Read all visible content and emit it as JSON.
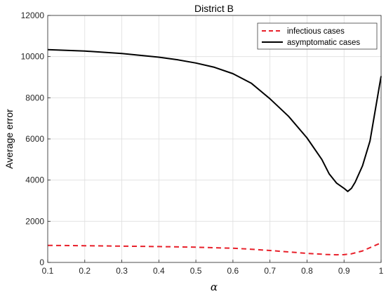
{
  "chart_data": {
    "type": "line",
    "title": "District B",
    "xlabel": "α",
    "ylabel": "Average error",
    "xlim": [
      0.1,
      1.0
    ],
    "ylim": [
      0,
      12000
    ],
    "xticks": [
      "0.1",
      "0.2",
      "0.3",
      "0.4",
      "0.5",
      "0.6",
      "0.7",
      "0.8",
      "0.9",
      "1"
    ],
    "yticks": [
      "0",
      "2000",
      "4000",
      "6000",
      "8000",
      "10000",
      "12000"
    ],
    "grid": true,
    "legend_position": "top-right",
    "series": [
      {
        "name": "infectious cases",
        "color": "#e8202a",
        "style": "dashed",
        "x": [
          0.1,
          0.2,
          0.3,
          0.4,
          0.5,
          0.6,
          0.65,
          0.7,
          0.75,
          0.8,
          0.85,
          0.88,
          0.9,
          0.92,
          0.95,
          1.0
        ],
        "y": [
          830,
          810,
          790,
          770,
          740,
          690,
          640,
          580,
          510,
          440,
          390,
          370,
          380,
          420,
          560,
          950
        ]
      },
      {
        "name": "asymptomatic cases",
        "color": "#000000",
        "style": "solid",
        "x": [
          0.1,
          0.2,
          0.3,
          0.4,
          0.45,
          0.5,
          0.55,
          0.6,
          0.65,
          0.7,
          0.75,
          0.8,
          0.84,
          0.86,
          0.88,
          0.9,
          0.91,
          0.92,
          0.93,
          0.95,
          0.97,
          1.0
        ],
        "y": [
          10340,
          10270,
          10150,
          9970,
          9850,
          9690,
          9480,
          9170,
          8700,
          7950,
          7100,
          6050,
          5000,
          4300,
          3850,
          3600,
          3450,
          3600,
          3900,
          4700,
          5900,
          9050
        ]
      }
    ]
  }
}
